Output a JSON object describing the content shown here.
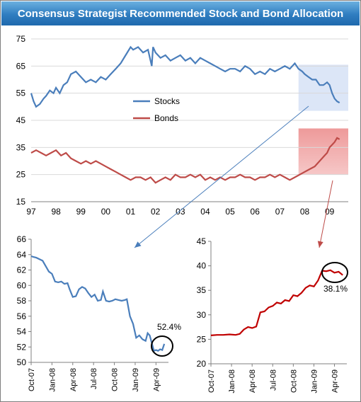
{
  "title": "Consensus Strategist Recommended Stock and Bond Allocation",
  "colors": {
    "stocks": "#4a7ebb",
    "bonds": "#be4b48",
    "zoom_bonds": "#c00000",
    "stocks_highlight": "#dce6f7",
    "bonds_highlight": "#f6c7c7",
    "arrow_blue": "#4a7ebb",
    "arrow_red": "#be4b48"
  },
  "chart_data": [
    {
      "type": "line",
      "title": "",
      "x_ticks": [
        "97",
        "98",
        "99",
        "00",
        "01",
        "02",
        "03",
        "04",
        "05",
        "06",
        "07",
        "08",
        "09"
      ],
      "y_ticks": [
        15,
        25,
        35,
        45,
        55,
        65,
        75
      ],
      "ylim": [
        15,
        75
      ],
      "xlim": [
        1997.0,
        2009.75
      ],
      "legend": {
        "placement": "center-left",
        "entries": [
          "Stocks",
          "Bonds"
        ]
      },
      "series": [
        {
          "name": "Stocks",
          "x": [
            1997.0,
            1997.1,
            1997.2,
            1997.35,
            1997.5,
            1997.6,
            1997.75,
            1997.9,
            1998.0,
            1998.15,
            1998.3,
            1998.45,
            1998.6,
            1998.8,
            1999.0,
            1999.2,
            1999.4,
            1999.6,
            1999.8,
            2000.0,
            2000.2,
            2000.4,
            2000.6,
            2000.8,
            2001.0,
            2001.1,
            2001.3,
            2001.5,
            2001.7,
            2001.85,
            2001.9,
            2002.0,
            2002.2,
            2002.4,
            2002.6,
            2002.8,
            2003.0,
            2003.2,
            2003.4,
            2003.6,
            2003.8,
            2004.0,
            2004.2,
            2004.4,
            2004.6,
            2004.8,
            2005.0,
            2005.2,
            2005.4,
            2005.6,
            2005.8,
            2006.0,
            2006.2,
            2006.4,
            2006.6,
            2006.8,
            2007.0,
            2007.2,
            2007.4,
            2007.6,
            2007.75,
            2007.9,
            2008.0,
            2008.15,
            2008.3,
            2008.45,
            2008.6,
            2008.75,
            2008.9,
            2009.0,
            2009.1,
            2009.2,
            2009.3,
            2009.4
          ],
          "values": [
            55,
            52,
            50,
            51,
            53,
            54,
            56,
            55,
            57,
            55,
            58,
            59,
            62,
            63,
            61,
            59,
            60,
            59,
            61,
            60,
            62,
            64,
            66,
            69,
            72,
            71,
            72,
            70,
            71,
            65,
            72,
            70,
            68,
            69,
            67,
            68,
            69,
            67,
            68,
            66,
            68,
            67,
            66,
            65,
            64,
            63,
            64,
            64,
            63,
            65,
            64,
            62,
            63,
            62,
            64,
            63,
            64,
            65,
            64,
            66,
            64,
            63,
            62,
            61,
            60,
            60,
            58,
            58,
            59,
            58,
            55,
            53,
            52,
            51.5
          ]
        },
        {
          "name": "Bonds",
          "x": [
            1997.0,
            1997.2,
            1997.4,
            1997.6,
            1997.8,
            1998.0,
            1998.2,
            1998.4,
            1998.6,
            1998.8,
            1999.0,
            1999.2,
            1999.4,
            1999.6,
            1999.8,
            2000.0,
            2000.2,
            2000.4,
            2000.6,
            2000.8,
            2001.0,
            2001.2,
            2001.4,
            2001.6,
            2001.8,
            2002.0,
            2002.2,
            2002.4,
            2002.6,
            2002.8,
            2003.0,
            2003.2,
            2003.4,
            2003.6,
            2003.8,
            2004.0,
            2004.2,
            2004.4,
            2004.6,
            2004.8,
            2005.0,
            2005.2,
            2005.4,
            2005.6,
            2005.8,
            2006.0,
            2006.2,
            2006.4,
            2006.6,
            2006.8,
            2007.0,
            2007.2,
            2007.4,
            2007.6,
            2007.8,
            2008.0,
            2008.2,
            2008.4,
            2008.6,
            2008.8,
            2008.9,
            2009.0,
            2009.1,
            2009.2,
            2009.3,
            2009.4
          ],
          "values": [
            33,
            34,
            33,
            32,
            33,
            34,
            32,
            33,
            31,
            30,
            29,
            30,
            29,
            30,
            29,
            28,
            27,
            26,
            25,
            24,
            23,
            24,
            24,
            23,
            24,
            22,
            23,
            24,
            23,
            25,
            24,
            24,
            25,
            24,
            25,
            23,
            24,
            23,
            24,
            23,
            24,
            24,
            25,
            24,
            24,
            23,
            24,
            24,
            25,
            24,
            25,
            24,
            23,
            24,
            25,
            26,
            27,
            28,
            30,
            32,
            33,
            35,
            36,
            37,
            38.5,
            38
          ]
        }
      ]
    },
    {
      "type": "line",
      "title": "",
      "x_ticks": [
        "Oct-07",
        "Jan-08",
        "Apr-08",
        "Jul-08",
        "Oct-08",
        "Jan-09",
        "Apr-09"
      ],
      "y_ticks": [
        50,
        52,
        54,
        56,
        58,
        60,
        62,
        64,
        66
      ],
      "ylim": [
        50,
        66
      ],
      "annotation": "52.4%",
      "series": [
        {
          "name": "Stocks",
          "x": [
            0,
            0.1,
            0.25,
            0.4,
            0.55,
            0.7,
            0.85,
            1.0,
            1.15,
            1.3,
            1.45,
            1.6,
            1.75,
            1.85,
            2.0,
            2.15,
            2.3,
            2.45,
            2.6,
            2.75,
            2.9,
            3.05,
            3.2,
            3.35,
            3.45,
            3.6,
            3.75,
            3.9,
            4.05,
            4.2,
            4.35,
            4.5,
            4.6,
            4.75,
            4.9,
            5.05,
            5.2,
            5.35,
            5.5,
            5.6,
            5.7,
            5.8,
            5.9,
            6.0,
            6.1,
            6.2,
            6.3,
            6.4
          ],
          "values": [
            63.8,
            63.7,
            63.6,
            63.4,
            63.2,
            62.5,
            61.8,
            61.5,
            60.5,
            60.4,
            60.5,
            60.2,
            60.3,
            59.5,
            58.5,
            58.6,
            59.5,
            59.8,
            59.6,
            59.0,
            58.5,
            58.8,
            58.0,
            58.1,
            59.2,
            58.0,
            57.9,
            58.0,
            58.2,
            58.1,
            58.0,
            58.1,
            58.2,
            56.0,
            55.0,
            53.2,
            53.5,
            53.0,
            52.8,
            53.8,
            53.5,
            52.5,
            51.5,
            51.6,
            51.5,
            51.7,
            51.6,
            52.4
          ]
        }
      ]
    },
    {
      "type": "line",
      "title": "",
      "x_ticks": [
        "Oct-07",
        "Jan-08",
        "Apr-08",
        "Jul-08",
        "Oct-08",
        "Jan-09",
        "Apr-09"
      ],
      "y_ticks": [
        20,
        25,
        30,
        35,
        40,
        45
      ],
      "ylim": [
        20,
        45
      ],
      "annotation": "38.1%",
      "series": [
        {
          "name": "Bonds",
          "x": [
            0,
            0.3,
            0.6,
            0.9,
            1.2,
            1.4,
            1.6,
            1.8,
            2.0,
            2.2,
            2.4,
            2.6,
            2.8,
            3.0,
            3.2,
            3.4,
            3.6,
            3.8,
            4.0,
            4.2,
            4.4,
            4.6,
            4.8,
            5.0,
            5.2,
            5.4,
            5.6,
            5.8,
            6.0,
            6.2,
            6.4
          ],
          "values": [
            25.8,
            25.9,
            25.9,
            26.0,
            25.9,
            26.1,
            27.0,
            27.5,
            27.3,
            27.6,
            30.5,
            30.7,
            31.5,
            31.8,
            32.5,
            32.3,
            33.0,
            32.8,
            34.0,
            33.8,
            34.5,
            35.5,
            36.0,
            35.8,
            37.0,
            39.0,
            38.9,
            39.1,
            38.6,
            38.8,
            38.1
          ]
        }
      ]
    }
  ]
}
